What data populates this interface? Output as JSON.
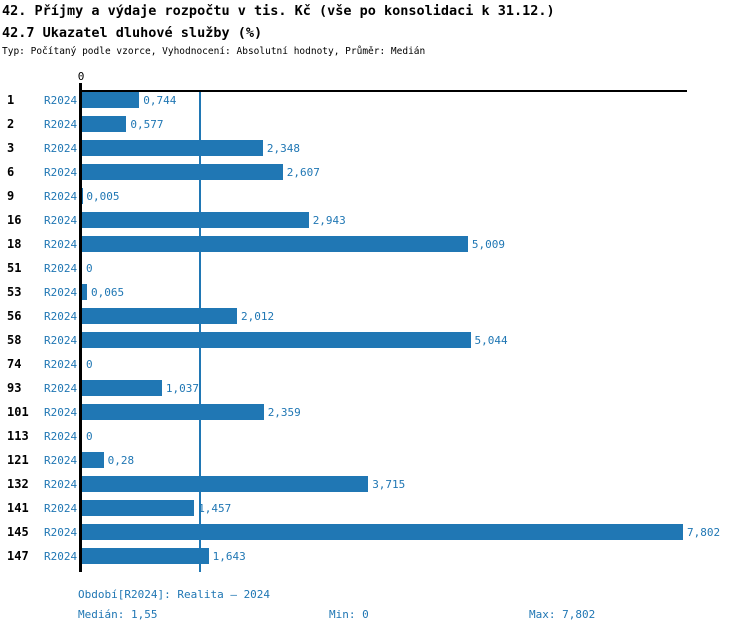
{
  "header": {
    "title_line1": "42. Příjmy a výdaje rozpočtu v tis. Kč (vše po konsolidaci k 31.12.)",
    "title_line2": "42.7 Ukazatel dluhové služby (%)",
    "subtitle": "Typ: Počítaný podle vzorce, Vyhodnocení: Absolutní hodnoty, Průměr: Medián"
  },
  "colors": {
    "accent": "#2077b4",
    "axis": "#000000",
    "background": "#ffffff"
  },
  "chart_data": {
    "type": "bar",
    "orientation": "horizontal",
    "title": "42.7 Ukazatel dluhové služby (%)",
    "series_name": "R2024",
    "x_axis": {
      "zero_label": "0",
      "min": 0,
      "max": 7.802,
      "gridlines": false
    },
    "median_value": 1.55,
    "legend_position": "none",
    "categories": [
      "1",
      "2",
      "3",
      "6",
      "9",
      "16",
      "18",
      "51",
      "53",
      "56",
      "58",
      "74",
      "93",
      "101",
      "113",
      "121",
      "132",
      "141",
      "145",
      "147"
    ],
    "rows": [
      {
        "category": "1",
        "value": 0.744,
        "value_label": "0,744"
      },
      {
        "category": "2",
        "value": 0.577,
        "value_label": "0,577"
      },
      {
        "category": "3",
        "value": 2.348,
        "value_label": "2,348"
      },
      {
        "category": "6",
        "value": 2.607,
        "value_label": "2,607"
      },
      {
        "category": "9",
        "value": 0.005,
        "value_label": "0,005"
      },
      {
        "category": "16",
        "value": 2.943,
        "value_label": "2,943"
      },
      {
        "category": "18",
        "value": 5.009,
        "value_label": "5,009"
      },
      {
        "category": "51",
        "value": 0,
        "value_label": "0"
      },
      {
        "category": "53",
        "value": 0.065,
        "value_label": "0,065"
      },
      {
        "category": "56",
        "value": 2.012,
        "value_label": "2,012"
      },
      {
        "category": "58",
        "value": 5.044,
        "value_label": "5,044"
      },
      {
        "category": "74",
        "value": 0,
        "value_label": "0"
      },
      {
        "category": "93",
        "value": 1.037,
        "value_label": "1,037"
      },
      {
        "category": "101",
        "value": 2.359,
        "value_label": "2,359"
      },
      {
        "category": "113",
        "value": 0,
        "value_label": "0"
      },
      {
        "category": "121",
        "value": 0.28,
        "value_label": "0,28"
      },
      {
        "category": "132",
        "value": 3.715,
        "value_label": "3,715"
      },
      {
        "category": "141",
        "value": 1.457,
        "value_label": "1,457"
      },
      {
        "category": "145",
        "value": 7.802,
        "value_label": "7,802"
      },
      {
        "category": "147",
        "value": 1.643,
        "value_label": "1,643"
      }
    ]
  },
  "footer": {
    "period_info": "Období[R2024]: Realita – 2024",
    "median": "Medián: 1,55",
    "min": "Min: 0",
    "max": "Max: 7,802"
  }
}
